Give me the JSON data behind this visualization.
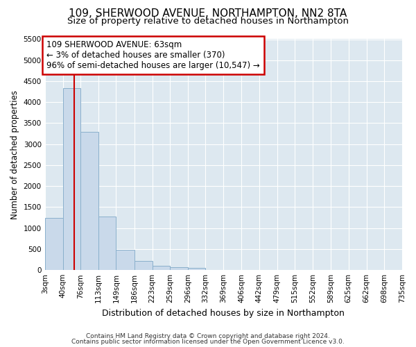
{
  "title1": "109, SHERWOOD AVENUE, NORTHAMPTON, NN2 8TA",
  "title2": "Size of property relative to detached houses in Northampton",
  "xlabel": "Distribution of detached houses by size in Northampton",
  "ylabel": "Number of detached properties",
  "footer_line1": "Contains HM Land Registry data © Crown copyright and database right 2024.",
  "footer_line2": "Contains public sector information licensed under the Open Government Licence v3.0.",
  "annotation_line1": "109 SHERWOOD AVENUE: 63sqm",
  "annotation_line2": "← 3% of detached houses are smaller (370)",
  "annotation_line3": "96% of semi-detached houses are larger (10,547) →",
  "property_size_sqm": 63,
  "bar_color": "#c9d9ea",
  "bar_edge_color": "#8ab0cc",
  "vline_color": "#cc0000",
  "annotation_box_edge_color": "#cc0000",
  "bins": [
    3,
    40,
    76,
    113,
    149,
    186,
    223,
    259,
    296,
    332,
    369,
    406,
    442,
    479,
    515,
    552,
    589,
    625,
    662,
    698,
    735
  ],
  "counts": [
    1250,
    4330,
    3300,
    1280,
    480,
    210,
    100,
    75,
    55,
    0,
    0,
    0,
    0,
    0,
    0,
    0,
    0,
    0,
    0,
    0
  ],
  "ylim": [
    0,
    5500
  ],
  "yticks": [
    0,
    500,
    1000,
    1500,
    2000,
    2500,
    3000,
    3500,
    4000,
    4500,
    5000,
    5500
  ],
  "background_color": "#dde8f0",
  "grid_color": "#ffffff",
  "title1_fontsize": 11,
  "title2_fontsize": 9.5,
  "xlabel_fontsize": 9,
  "ylabel_fontsize": 8.5,
  "tick_fontsize": 7.5,
  "annotation_fontsize": 8.5,
  "footer_fontsize": 6.5
}
